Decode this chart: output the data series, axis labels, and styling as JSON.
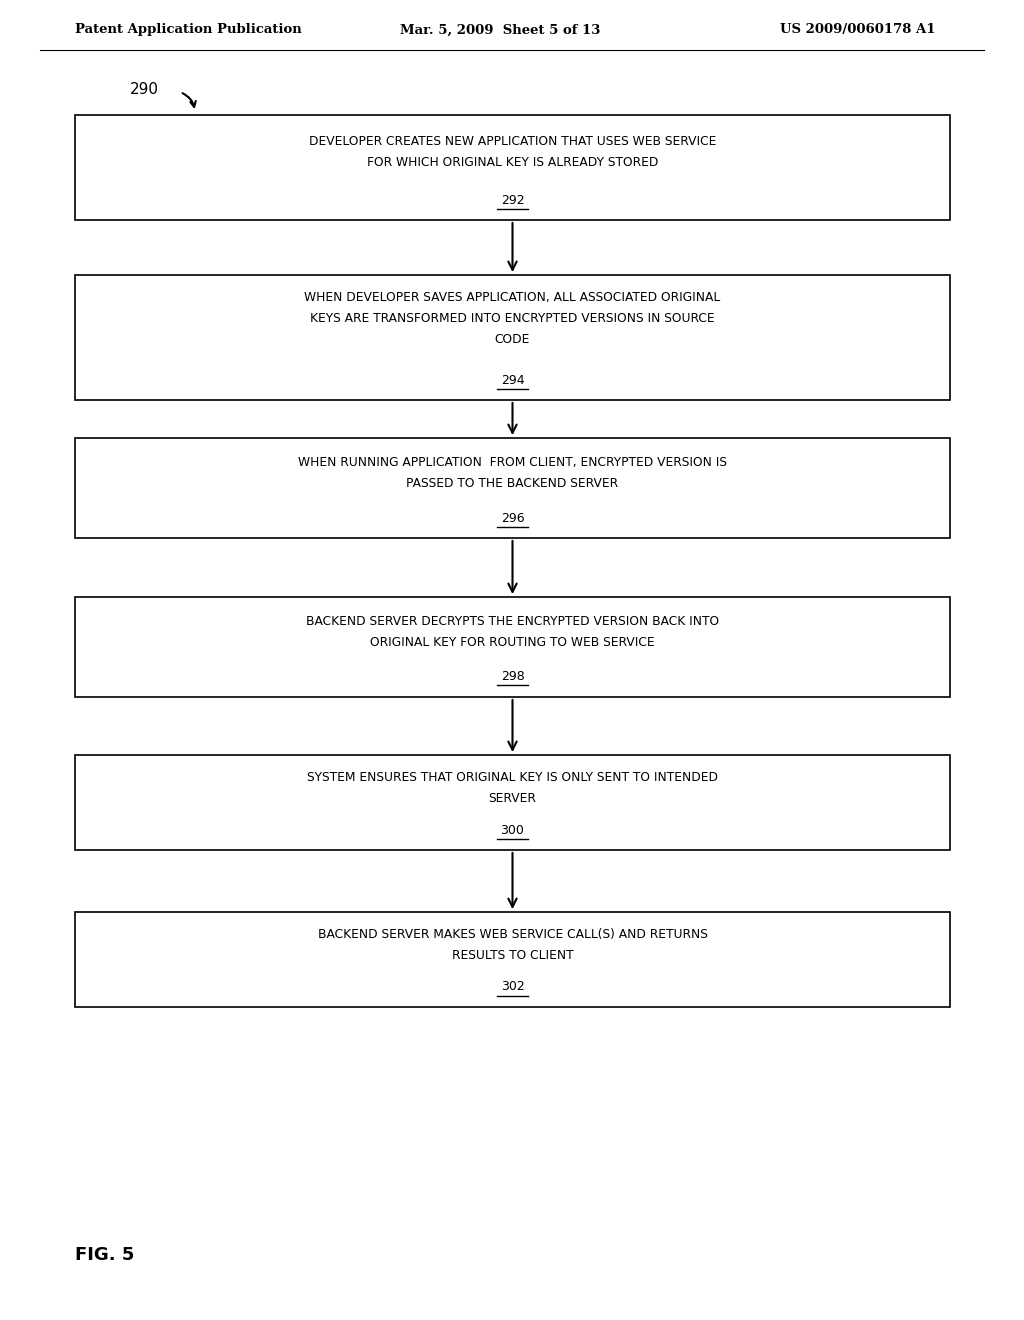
{
  "header_left": "Patent Application Publication",
  "header_mid": "Mar. 5, 2009  Sheet 5 of 13",
  "header_right": "US 2009/0060178 A1",
  "figure_label": "FIG. 5",
  "flow_label": "290",
  "boxes": [
    {
      "lines": [
        "DEVELOPER CREATES NEW APPLICATION THAT USES WEB SERVICE",
        "FOR WHICH ORIGINAL KEY IS ALREADY STORED"
      ],
      "label": "292"
    },
    {
      "lines": [
        "WHEN DEVELOPER SAVES APPLICATION, ALL ASSOCIATED ORIGINAL",
        "KEYS ARE TRANSFORMED INTO ENCRYPTED VERSIONS IN SOURCE",
        "CODE"
      ],
      "label": "294"
    },
    {
      "lines": [
        "WHEN RUNNING APPLICATION  FROM CLIENT, ENCRYPTED VERSION IS",
        "PASSED TO THE BACKEND SERVER"
      ],
      "label": "296"
    },
    {
      "lines": [
        "BACKEND SERVER DECRYPTS THE ENCRYPTED VERSION BACK INTO",
        "ORIGINAL KEY FOR ROUTING TO WEB SERVICE"
      ],
      "label": "298"
    },
    {
      "lines": [
        "SYSTEM ENSURES THAT ORIGINAL KEY IS ONLY SENT TO INTENDED",
        "SERVER"
      ],
      "label": "300"
    },
    {
      "lines": [
        "BACKEND SERVER MAKES WEB SERVICE CALL(S) AND RETURNS",
        "RESULTS TO CLIENT"
      ],
      "label": "302"
    }
  ],
  "bg_color": "#ffffff",
  "box_edge_color": "#000000",
  "text_color": "#000000",
  "arrow_color": "#000000"
}
